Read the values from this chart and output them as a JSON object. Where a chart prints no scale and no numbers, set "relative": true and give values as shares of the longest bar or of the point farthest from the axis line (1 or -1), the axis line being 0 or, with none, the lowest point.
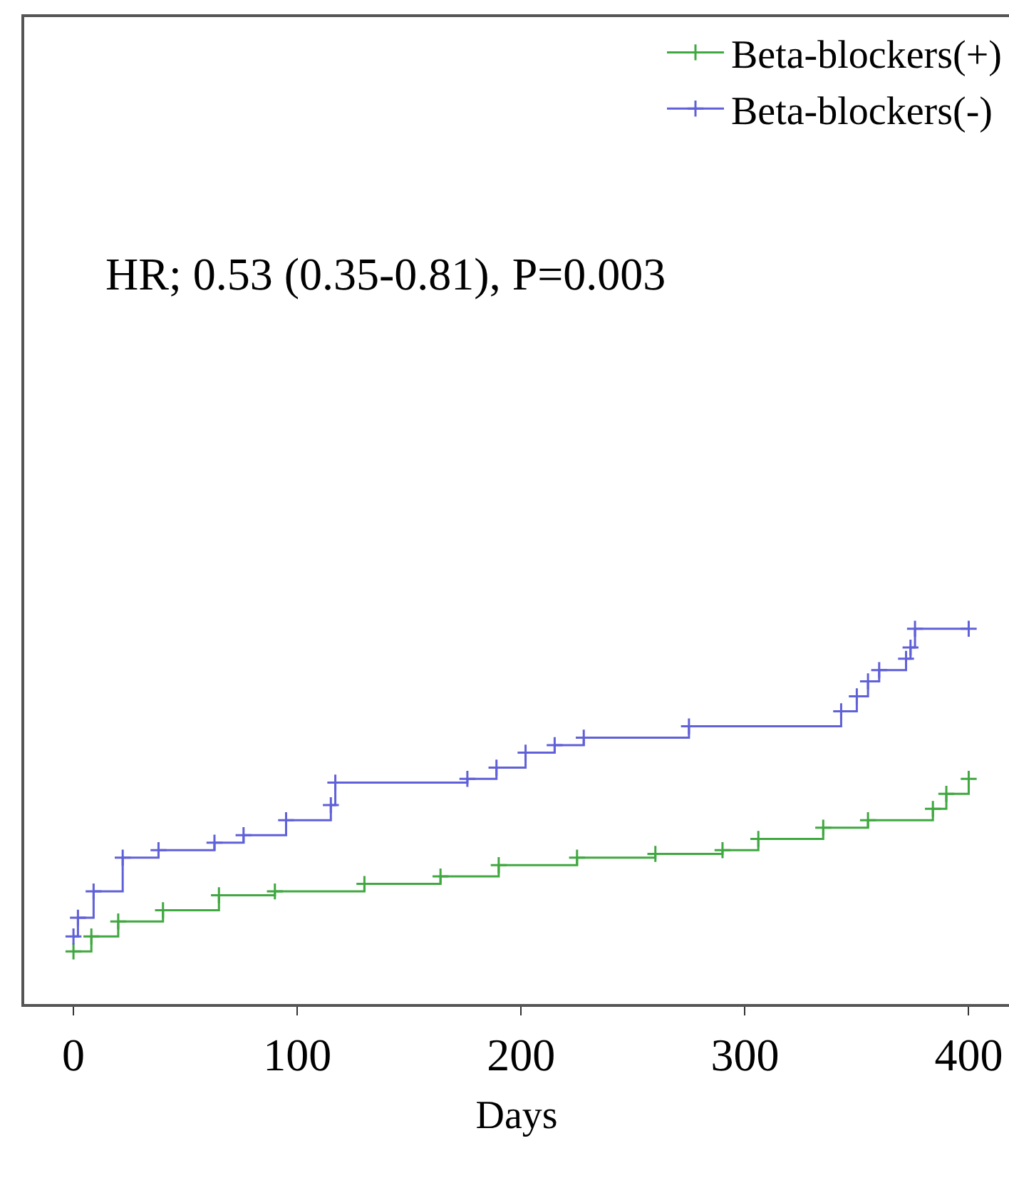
{
  "chart_data": {
    "type": "step",
    "relative": true,
    "xlabel": "Days",
    "xlim": [
      -22,
      418
    ],
    "xticks": [
      0,
      100,
      200,
      300,
      400
    ],
    "series": [
      {
        "name": "Beta-blockers(+)",
        "color": "#40a840",
        "x": [
          0,
          8,
          20,
          40,
          65,
          90,
          130,
          164,
          190,
          225,
          260,
          290,
          306,
          335,
          355,
          384,
          390,
          400
        ],
        "values": [
          0.14,
          0.18,
          0.22,
          0.25,
          0.29,
          0.3,
          0.32,
          0.34,
          0.37,
          0.39,
          0.4,
          0.41,
          0.44,
          0.47,
          0.49,
          0.52,
          0.56,
          0.6
        ]
      },
      {
        "name": "Beta-blockers(-)",
        "color": "#6060d8",
        "x": [
          0,
          2,
          9,
          22,
          38,
          63,
          76,
          95,
          115,
          117,
          176,
          189,
          202,
          215,
          228,
          275,
          343,
          350,
          355,
          360,
          372,
          374,
          376,
          400
        ],
        "values": [
          0.18,
          0.23,
          0.3,
          0.39,
          0.41,
          0.43,
          0.45,
          0.49,
          0.53,
          0.59,
          0.6,
          0.63,
          0.67,
          0.69,
          0.71,
          0.74,
          0.78,
          0.82,
          0.86,
          0.89,
          0.92,
          0.95,
          1,
          1
        ]
      }
    ],
    "annotations": [
      "HR; 0.53 (0.35-0.81), P=0.003"
    ],
    "marker": "cross",
    "legend": "top right"
  }
}
